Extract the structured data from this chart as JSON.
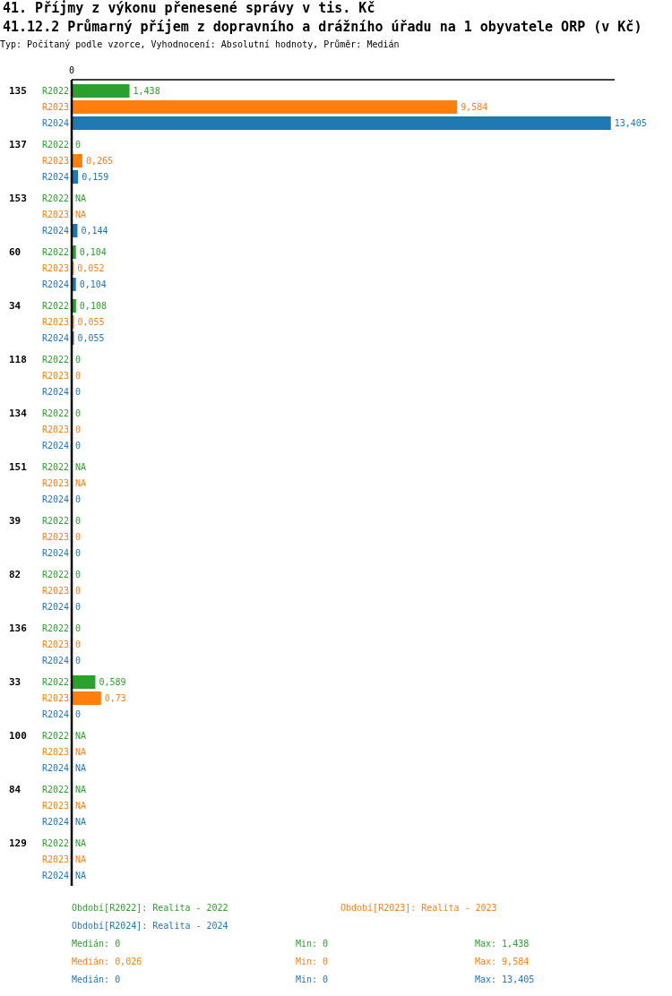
{
  "chart_data": {
    "type": "bar",
    "orientation": "horizontal",
    "title": "41. Příjmy z výkonu přenesené správy v tis. Kč",
    "subtitle": "41.12.2 Průmarný příjem z dopravního a drážního úřadu na 1 obyvatele ORP (v Kč)",
    "annotations": [
      "Typ: Počítaný podle vzorce, Vyhodnocení: Absolutní hodnoty, Průměr: Medián",
      "0",
      "Období[R2022]: Realita - 2022",
      "Období[R2023]: Realita - 2023",
      "Období[R2024]: Realita - 2024",
      "Medián: 0",
      "Min: 0",
      "Max: 1,438",
      "Medián: 0,026",
      "Min: 0",
      "Max: 9,584",
      "Medián: 0",
      "Min: 0",
      "Max: 13,405"
    ],
    "categories": [
      "135",
      "137",
      "153",
      "60",
      "34",
      "118",
      "134",
      "151",
      "39",
      "82",
      "136",
      "33",
      "100",
      "84",
      "129"
    ],
    "series": [
      {
        "name": "R2022",
        "color": "#2ca02c",
        "values": [
          1.438,
          0,
          null,
          0.104,
          0.108,
          0,
          0,
          null,
          0,
          0,
          0,
          0.589,
          null,
          null,
          null
        ],
        "value_labels": [
          "1,438",
          "0",
          "NA",
          "0,104",
          "0,108",
          "0",
          "0",
          "NA",
          "0",
          "0",
          "0",
          "0,589",
          "NA",
          "NA",
          "NA"
        ]
      },
      {
        "name": "R2023",
        "color": "#ff7f0e",
        "values": [
          9.584,
          0.265,
          null,
          0.052,
          0.055,
          0,
          0,
          null,
          0,
          0,
          0,
          0.73,
          null,
          null,
          null
        ],
        "value_labels": [
          "9,584",
          "0,265",
          "NA",
          "0,052",
          "0,055",
          "0",
          "0",
          "NA",
          "0",
          "0",
          "0",
          "0,73",
          "NA",
          "NA",
          "NA"
        ]
      },
      {
        "name": "R2024",
        "color": "#1f77b4",
        "values": [
          13.405,
          0.159,
          0.144,
          0.104,
          0.055,
          0,
          0,
          0,
          0,
          0,
          0,
          0,
          null,
          null,
          null
        ],
        "value_labels": [
          "13,405",
          "0,159",
          "0,144",
          "0,104",
          "0,055",
          "0",
          "0",
          "0",
          "0",
          "0",
          "0",
          "0",
          "NA",
          "NA",
          "NA"
        ]
      }
    ],
    "xlim": [
      0,
      13.5
    ],
    "grid": false
  }
}
